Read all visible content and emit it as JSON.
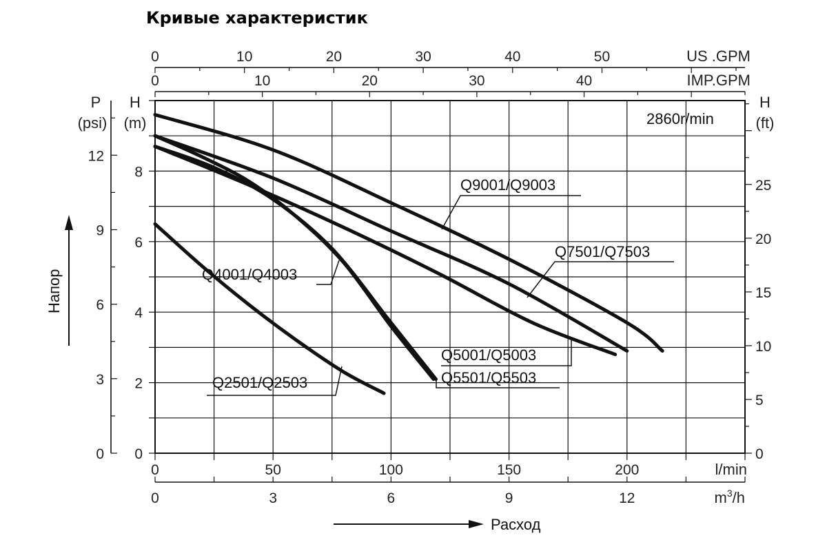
{
  "chart_data": {
    "type": "line",
    "title": "Кривые характеристик",
    "annotation": "2860r/min",
    "xlabel": "Расход",
    "ylabel": "Напор",
    "x_axis_primary": {
      "unit": "l/min",
      "range": [
        0,
        250
      ],
      "ticks": [
        0,
        50,
        100,
        150,
        200
      ]
    },
    "x_axis_m3h": {
      "unit_base": "m",
      "unit_sup": "3",
      "unit_tail": "/h",
      "range": [
        0,
        15
      ],
      "ticks": [
        0,
        3,
        6,
        9,
        12
      ]
    },
    "x_axis_usgpm": {
      "unit": "US .GPM",
      "range": [
        0,
        66
      ],
      "ticks": [
        0,
        10,
        20,
        30,
        40,
        50
      ]
    },
    "x_axis_impgpm": {
      "unit": "IMP.GPM",
      "range": [
        0,
        55
      ],
      "ticks": [
        0,
        10,
        20,
        30,
        40
      ]
    },
    "y_axis_m": {
      "unit_letter": "H",
      "unit": "(m)",
      "range": [
        0,
        10
      ],
      "ticks": [
        0,
        2,
        4,
        6,
        8
      ]
    },
    "y_axis_psi": {
      "unit_letter": "P",
      "unit": "(psi)",
      "range": [
        0,
        14.2
      ],
      "ticks": [
        0,
        3,
        6,
        9,
        12
      ]
    },
    "y_axis_ft": {
      "unit_letter": "H",
      "unit": "(ft)",
      "range": [
        0,
        32.8
      ],
      "ticks": [
        0,
        5,
        10,
        15,
        20,
        25
      ]
    },
    "grid": true,
    "series": [
      {
        "name": "Q2501/Q2503",
        "x": [
          0,
          20,
          40,
          60,
          80,
          97
        ],
        "y": [
          6.5,
          5.3,
          4.2,
          3.2,
          2.3,
          1.7
        ]
      },
      {
        "name": "Q4001/Q4003",
        "x": [
          0,
          25,
          50,
          75,
          100,
          119
        ],
        "y": [
          8.7,
          8.1,
          7.2,
          5.8,
          3.7,
          2.1
        ]
      },
      {
        "name": "Q5001/Q5003",
        "x": [
          0,
          40,
          80,
          120,
          160,
          195
        ],
        "y": [
          8.7,
          7.6,
          6.4,
          5.1,
          3.7,
          2.8
        ]
      },
      {
        "name": "Q5501/Q5503",
        "x": [
          0,
          20,
          40,
          60,
          80,
          100,
          118
        ],
        "y": [
          9.0,
          8.4,
          7.7,
          6.7,
          5.4,
          3.6,
          2.1
        ]
      },
      {
        "name": "Q7501/Q7503",
        "x": [
          0,
          50,
          100,
          150,
          200
        ],
        "y": [
          9.0,
          7.8,
          6.3,
          4.8,
          2.9
        ]
      },
      {
        "name": "Q9001/Q9003",
        "x": [
          0,
          50,
          100,
          150,
          200,
          215
        ],
        "y": [
          9.6,
          8.6,
          7.1,
          5.5,
          3.7,
          2.9
        ]
      }
    ]
  }
}
